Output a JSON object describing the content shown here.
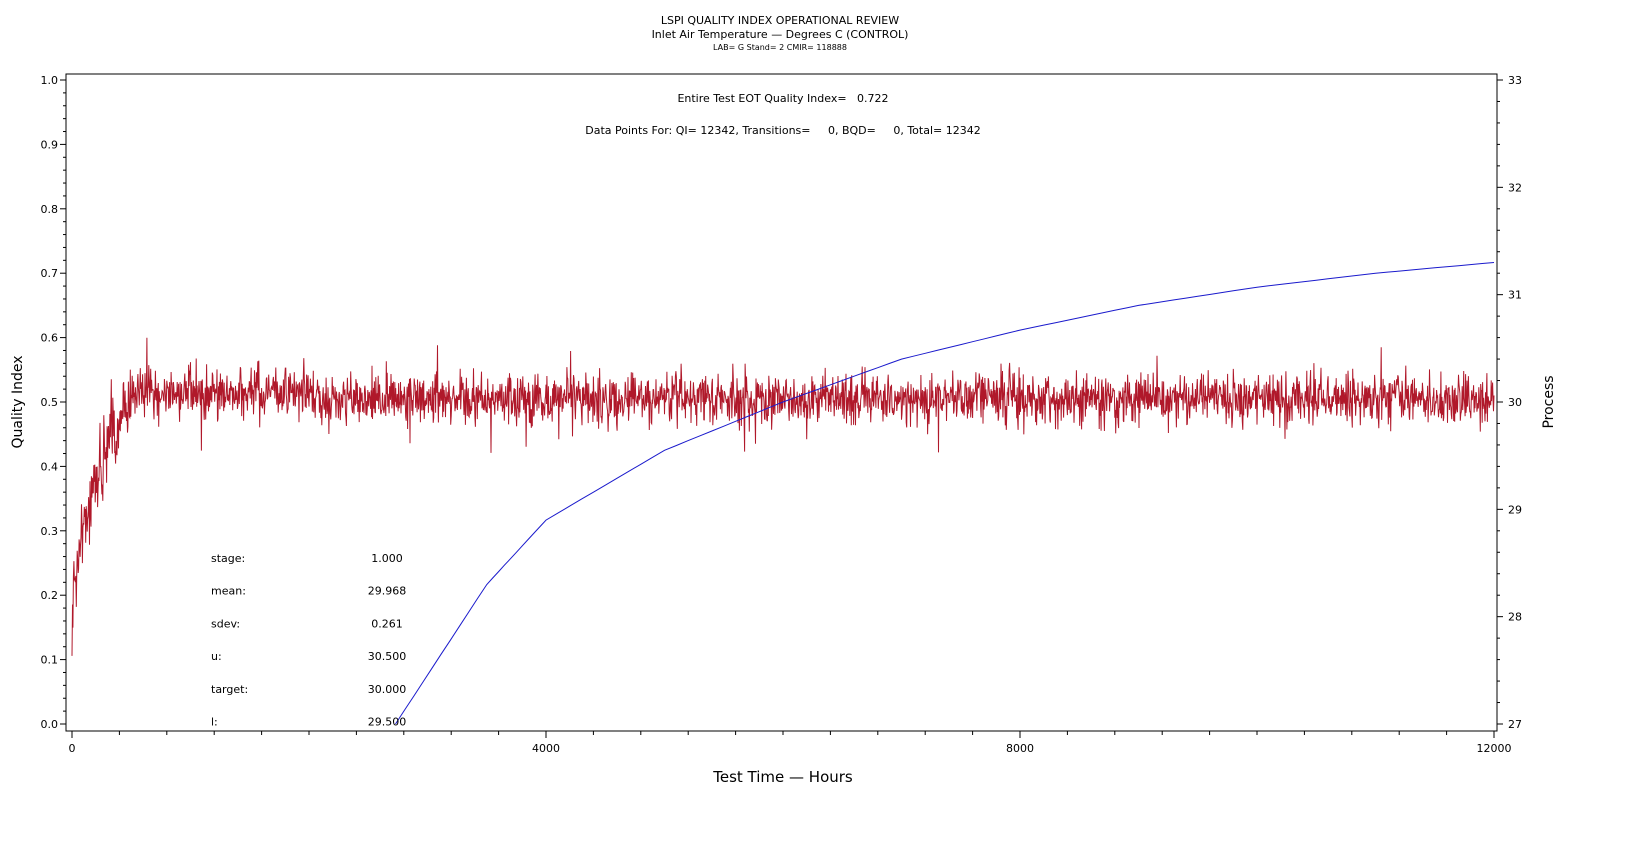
{
  "chart_data": {
    "type": "line",
    "title": "LSPI QUALITY INDEX OPERATIONAL REVIEW",
    "subtitle": "Inlet Air Temperature — Degrees C (CONTROL)",
    "subtitle2": "LAB= G Stand= 2 CMIR= 118888",
    "annotation1": "Entire Test EOT Quality Index=   0.722",
    "annotation2": "Data Points For: QI= 12342, Transitions=     0, BQD=     0, Total= 12342",
    "xlabel": "Test Time — Hours",
    "ylabel": "Quality Index",
    "y2label": "Process",
    "xlim": [
      0,
      12000
    ],
    "ylim": [
      0,
      1
    ],
    "y2lim": [
      27,
      33
    ],
    "xticks": [
      "0",
      "4000",
      "8000",
      "12000"
    ],
    "yticks": [
      "0.0",
      "0.1",
      "0.2",
      "0.3",
      "0.4",
      "0.5",
      "0.6",
      "0.7",
      "0.8",
      "0.9",
      "1.0"
    ],
    "y2ticks": [
      "27",
      "28",
      "29",
      "30",
      "31",
      "32",
      "33"
    ],
    "colors": {
      "qi": "#b0182a",
      "process": "#1a1acc"
    },
    "series": [
      {
        "name": "Quality Index",
        "axis": "left",
        "n_points": 12342,
        "ramp": {
          "start": 0.15,
          "end_time": 500,
          "level": 0.51
        },
        "steady_mean": 0.505,
        "noise_sd": 0.03
      },
      {
        "name": "Process",
        "axis": "right",
        "x": [
          2730,
          3500,
          4000,
          5000,
          6000,
          7000,
          8000,
          9000,
          10000,
          11000,
          12000
        ],
        "y": [
          27.0,
          28.3,
          28.9,
          29.55,
          30.0,
          30.4,
          30.67,
          30.9,
          31.07,
          31.2,
          31.3
        ]
      }
    ],
    "stats": [
      {
        "label": "stage:",
        "value": "1.000"
      },
      {
        "label": "mean:",
        "value": "29.968"
      },
      {
        "label": "sdev:",
        "value": "0.261"
      },
      {
        "label": "u:",
        "value": "30.500"
      },
      {
        "label": "target:",
        "value": "30.000"
      },
      {
        "label": "l:",
        "value": "29.500"
      }
    ]
  }
}
